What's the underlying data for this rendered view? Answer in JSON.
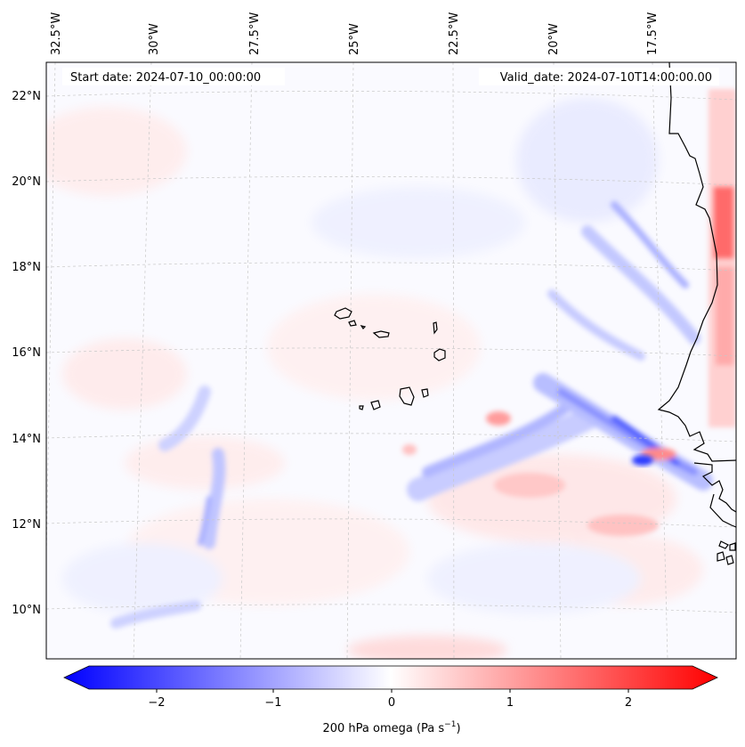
{
  "header": {
    "start_date": "Start date: 2024-07-10_00:00:00",
    "valid_date": "Valid_date: 2024-07-10T14:00:00.00"
  },
  "longitude_labels": [
    "32.5°W",
    "30°W",
    "27.5°W",
    "25°W",
    "22.5°W",
    "20°W",
    "17.5°W"
  ],
  "latitude_labels": [
    "22°N",
    "20°N",
    "18°N",
    "16°N",
    "14°N",
    "12°N",
    "10°N"
  ],
  "colorbar": {
    "tick_labels": [
      "−2",
      "−1",
      "0",
      "1",
      "2"
    ],
    "label_prefix": "200 hPa omega (Pa s",
    "label_sup": "−1",
    "label_suffix": ")",
    "range": [
      -2.6,
      2.6
    ],
    "colormap": "bwr",
    "extend": "both"
  },
  "colors": {
    "negative": "#0000ff",
    "zero": "#ffffff",
    "positive": "#ff0000",
    "coastline": "#000000",
    "gridline": "#c8c8c8"
  },
  "chart_data": {
    "type": "heatmap",
    "variable": "200 hPa omega",
    "units": "Pa s^-1",
    "lon_range": [
      -33,
      -15.5
    ],
    "lat_range": [
      9,
      22.7
    ],
    "gridlines": true,
    "features": [
      {
        "kind": "band",
        "sign": "negative",
        "lon": [
          -22.5,
          -15.5
        ],
        "lat": [
          12.5,
          15.5
        ],
        "peak": -1.3
      },
      {
        "kind": "band",
        "sign": "negative",
        "lon": [
          -20,
          -16.5
        ],
        "lat": [
          15,
          19.5
        ],
        "peak": -0.9
      },
      {
        "kind": "strip",
        "sign": "positive",
        "lon": [
          -15.9,
          -15.5
        ],
        "lat": [
          16,
          21
        ],
        "peak": 1.6
      },
      {
        "kind": "blob",
        "sign": "positive",
        "lon": [
          -19,
          -17
        ],
        "lat": [
          12,
          13.5
        ],
        "peak": 0.8
      },
      {
        "kind": "blob",
        "sign": "negative",
        "lon": [
          -29,
          -28
        ],
        "lat": [
          11.5,
          13.5
        ],
        "peak": -0.6
      }
    ]
  }
}
